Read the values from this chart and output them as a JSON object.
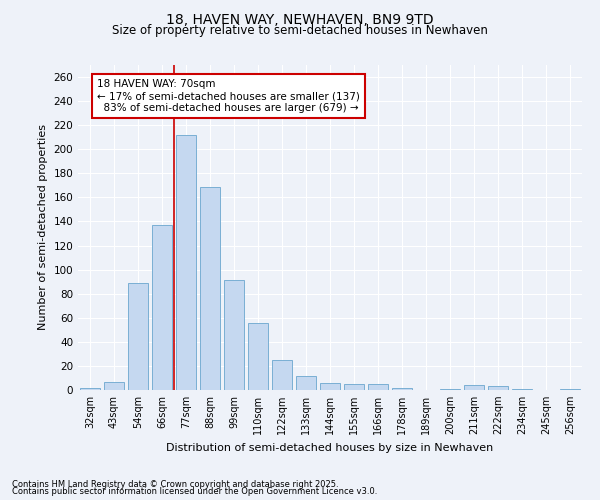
{
  "title1": "18, HAVEN WAY, NEWHAVEN, BN9 9TD",
  "title2": "Size of property relative to semi-detached houses in Newhaven",
  "xlabel": "Distribution of semi-detached houses by size in Newhaven",
  "ylabel": "Number of semi-detached properties",
  "categories": [
    "32sqm",
    "43sqm",
    "54sqm",
    "66sqm",
    "77sqm",
    "88sqm",
    "99sqm",
    "110sqm",
    "122sqm",
    "133sqm",
    "144sqm",
    "155sqm",
    "166sqm",
    "178sqm",
    "189sqm",
    "200sqm",
    "211sqm",
    "222sqm",
    "234sqm",
    "245sqm",
    "256sqm"
  ],
  "values": [
    2,
    7,
    89,
    137,
    212,
    169,
    91,
    56,
    25,
    12,
    6,
    5,
    5,
    2,
    0,
    1,
    4,
    3,
    1,
    0,
    1
  ],
  "bar_color": "#c5d8f0",
  "bar_edge_color": "#7aafd4",
  "property_size": "70sqm",
  "property_name": "18 HAVEN WAY",
  "pct_smaller": 17,
  "count_smaller": 137,
  "pct_larger": 83,
  "count_larger": 679,
  "annotation_box_color": "#cc0000",
  "ylim": [
    0,
    270
  ],
  "yticks": [
    0,
    20,
    40,
    60,
    80,
    100,
    120,
    140,
    160,
    180,
    200,
    220,
    240,
    260
  ],
  "background_color": "#eef2f9",
  "grid_color": "#ffffff",
  "footnote1": "Contains HM Land Registry data © Crown copyright and database right 2025.",
  "footnote2": "Contains public sector information licensed under the Open Government Licence v3.0."
}
